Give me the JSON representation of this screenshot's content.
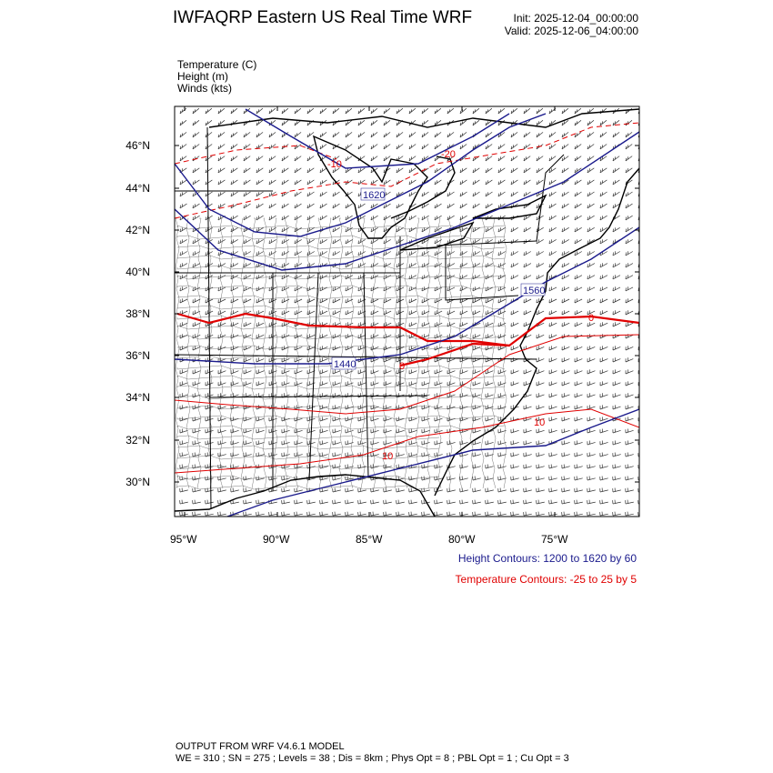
{
  "header": {
    "title": "IWFAQRP Eastern US Real Time WRF",
    "init": "Init: 2025-12-04_00:00:00",
    "valid": "Valid: 2025-12-06_04:00:00"
  },
  "fields": [
    "Temperature   (C)",
    "Height   (m)",
    "Winds   (kts)"
  ],
  "map": {
    "lat_labels": [
      "46°N",
      "44°N",
      "42°N",
      "40°N",
      "38°N",
      "36°N",
      "34°N",
      "32°N",
      "30°N"
    ],
    "lon_labels": [
      "95°W",
      "90°W",
      "85°W",
      "80°W",
      "75°W"
    ],
    "height_labels": [
      "1620",
      "1440",
      "1560"
    ],
    "temp_labels": [
      "-10",
      "-20",
      "0",
      "0",
      "10",
      "10"
    ],
    "colors": {
      "height": "#1a1a8c",
      "temperature": "#e00000",
      "map": "#000000"
    }
  },
  "legend": {
    "height": "Height Contours: 1200 to 1620 by 60",
    "temperature": "Temperature Contours: -25 to 25 by 5"
  },
  "footer": {
    "line1": "OUTPUT FROM WRF V4.6.1 MODEL",
    "line2": "WE = 310 ; SN = 275 ; Levels = 38 ; Dis = 8km ; Phys Opt = 8 ; PBL Opt = 1 ; Cu Opt = 3"
  }
}
